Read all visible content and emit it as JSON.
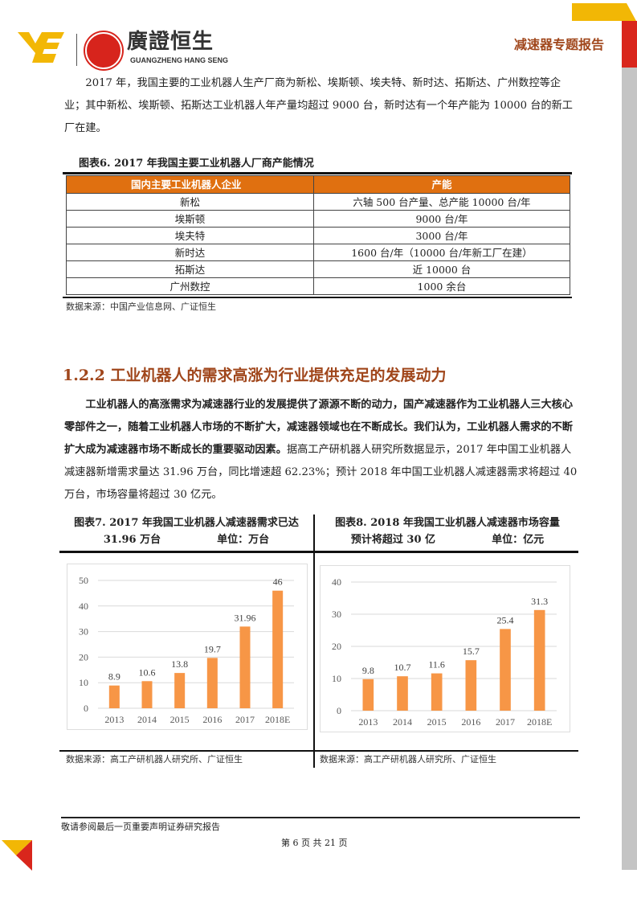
{
  "header": {
    "logo_cn": "廣證恒生",
    "logo_en": "GUANGZHENG HANG SENG",
    "report_title": "减速器专题报告",
    "colors": {
      "yellow": "#f2b705",
      "red": "#d9261c",
      "accent": "#a0461b"
    }
  },
  "para1": "2017 年，我国主要的工业机器人生产厂商为新松、埃斯顿、埃夫特、新时达、拓斯达、广州数控等企业；其中新松、埃斯顿、拓斯达工业机器人年产量均超过 9000 台，新时达有一个年产能为 10000 台的新工厂在建。",
  "table6": {
    "title": "图表6. 2017 年我国主要工业机器人厂商产能情况",
    "headers": [
      "国内主要工业机器人企业",
      "产能"
    ],
    "rows": [
      [
        "新松",
        "六轴 500 台产量、总产能 10000 台/年"
      ],
      [
        "埃斯顿",
        "9000 台/年"
      ],
      [
        "埃夫特",
        "3000 台/年"
      ],
      [
        "新时达",
        "1600 台/年（10000 台/年新工厂在建）"
      ],
      [
        "拓斯达",
        "近 10000 台"
      ],
      [
        "广州数控",
        "1000 余台"
      ]
    ],
    "source": "数据来源：中国产业信息网、广证恒生",
    "header_color": "#e07010"
  },
  "section": {
    "title": "1.2.2 工业机器人的需求高涨为行业提供充足的发展动力",
    "bold": "工业机器人的高涨需求为减速器行业的发展提供了源源不断的动力，国产减速器作为工业机器人三大核心零部件之一，随着工业机器人市场的不断扩大，减速器领域也在不断成长。我们认为，工业机器人需求的不断扩大成为减速器市场不断成长的重要驱动因素。",
    "normal": "据高工产研机器人研究所数据显示，2017 年中国工业机器人减速器新增需求量达 31.96 万台，同比增速超 62.23%；预计 2018 年中国工业机器人减速器需求将超过 40 万台，市场容量将超过 30 亿元。"
  },
  "fig7": {
    "title": "图表7. 2017 年我国工业机器人减速器需求已达",
    "title2": "31.96 万台",
    "unit": "单位：万台",
    "source": "数据来源：高工产研机器人研究所、广证恒生"
  },
  "fig8": {
    "title": "图表8. 2018  年我国工业机器人减速器市场容量",
    "title2": "预计将超过 30 亿",
    "unit": "单位：亿元",
    "source": "数据来源：高工产研机器人研究所、广证恒生"
  },
  "chart_data": [
    {
      "type": "bar",
      "categories": [
        "2013",
        "2014",
        "2015",
        "2016",
        "2017",
        "2018E"
      ],
      "values": [
        8.9,
        10.6,
        13.8,
        19.7,
        31.96,
        46
      ],
      "labels": [
        "8.9",
        "10.6",
        "13.8",
        "19.7",
        "31.96",
        "46"
      ],
      "ylim": [
        0,
        50
      ],
      "yticks": [
        "0",
        "10",
        "20",
        "30",
        "40",
        "50"
      ],
      "grid": true,
      "color": "#f79646"
    },
    {
      "type": "bar",
      "categories": [
        "2013",
        "2014",
        "2015",
        "2016",
        "2017",
        "2018E"
      ],
      "values": [
        9.8,
        10.7,
        11.6,
        15.7,
        25.4,
        31.3
      ],
      "labels": [
        "9.8",
        "10.7",
        "11.6",
        "15.7",
        "25.4",
        "31.3"
      ],
      "ylim": [
        0,
        40
      ],
      "yticks": [
        "0",
        "10",
        "20",
        "30",
        "40"
      ],
      "grid": true,
      "color": "#f79646"
    }
  ],
  "footer": {
    "note": "敬请参阅最后一页重要声明证券研究报告",
    "page": "第 6 页 共 21 页"
  }
}
